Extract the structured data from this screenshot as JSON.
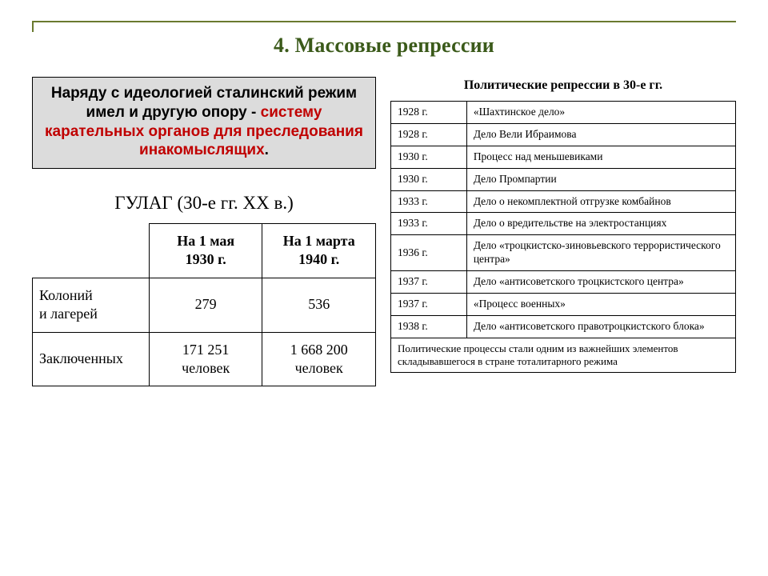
{
  "accent_color": "#3b5a1a",
  "rule_color": "#6a7a2f",
  "slide_title": "4. Массовые репрессии",
  "intro": {
    "plain": "Наряду с идеологией сталинский режим имел и другую опору - ",
    "red": "систему карательных органов для преследования инакомыслящих",
    "tail": "."
  },
  "gulag": {
    "title": "ГУЛАГ (30-е гг. XX в.)",
    "col1_line1": "На 1 мая",
    "col1_line2": "1930 г.",
    "col2_line1": "На 1 марта",
    "col2_line2": "1940 г.",
    "rows": [
      {
        "label_l1": "Колоний",
        "label_l2": "и лагерей",
        "v1": "279",
        "v2": "536"
      },
      {
        "label_l1": "Заключенных",
        "label_l2": "",
        "v1_l1": "171 251",
        "v1_l2": "человек",
        "v2_l1": "1 668 200",
        "v2_l2": "человек"
      }
    ]
  },
  "repressions": {
    "title": "Политические репрессии в 30-е гг.",
    "rows": [
      {
        "year": "1928 г.",
        "text": "«Шахтинское дело»"
      },
      {
        "year": "1928 г.",
        "text": "Дело Вели Ибраимова"
      },
      {
        "year": "1930 г.",
        "text": "Процесс над меньшевиками"
      },
      {
        "year": "1930 г.",
        "text": "Дело Промпартии"
      },
      {
        "year": "1933 г.",
        "text": "Дело о некомплектной отгрузке комбайнов"
      },
      {
        "year": "1933 г.",
        "text": "Дело о вредительстве на электростанциях"
      },
      {
        "year": "1936 г.",
        "text": "Дело «троцкистско-зиновьевского террористического центра»"
      },
      {
        "year": "1937 г.",
        "text": "Дело «антисоветского троцкистского центра»"
      },
      {
        "year": "1937 г.",
        "text": "«Процесс военных»"
      },
      {
        "year": "1938 г.",
        "text": "Дело «антисоветского правотроцкистского блока»"
      }
    ],
    "footer": "Политические процессы стали одним из важнейших элементов складывавшегося в стране тоталитарного режима"
  }
}
